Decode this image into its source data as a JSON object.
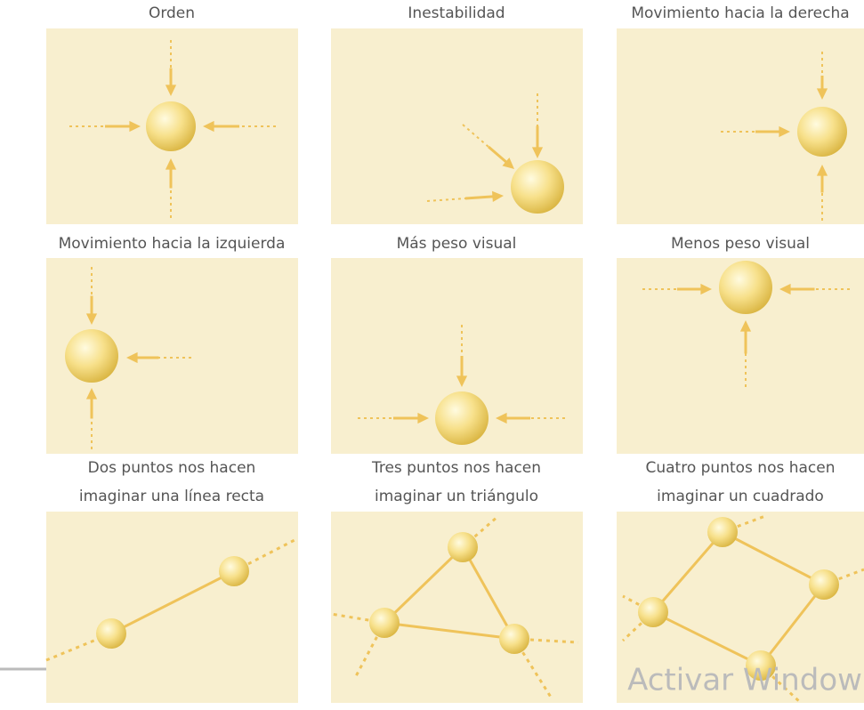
{
  "panels": [
    {
      "label": "Orden"
    },
    {
      "label": "Inestabilidad"
    },
    {
      "label": "Movimiento hacia la derecha"
    },
    {
      "label": "Movimiento hacia la izquierda"
    },
    {
      "label": "Más peso visual"
    },
    {
      "label": "Menos peso visual"
    },
    {
      "lines": [
        "Dos puntos nos hacen",
        "imaginar una línea recta"
      ]
    },
    {
      "lines": [
        "Tres puntos nos hacen",
        "imaginar un triángulo"
      ]
    },
    {
      "lines": [
        "Cuatro puntos nos hacen",
        "imaginar un cuadrado"
      ]
    }
  ],
  "watermark": "Activar Window"
}
